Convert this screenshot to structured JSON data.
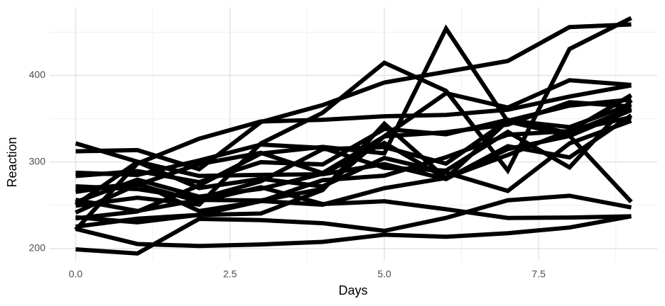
{
  "chart_data": {
    "type": "line",
    "x_label": "Days",
    "y_label": "Reaction",
    "x": [
      0,
      1,
      2,
      3,
      4,
      5,
      6,
      7,
      8,
      9
    ],
    "series": [
      {
        "color": "#000000",
        "values": [
          249.56,
          258.7,
          250.8,
          321.44,
          356.85,
          414.69,
          382.2,
          290.15,
          430.59,
          466.35
        ]
      },
      {
        "color": "#000000",
        "values": [
          222.73,
          205.27,
          202.98,
          204.71,
          207.72,
          215.96,
          213.63,
          217.73,
          224.3,
          237.31
        ]
      },
      {
        "color": "#000000",
        "values": [
          199.05,
          194.33,
          234.32,
          232.84,
          229.31,
          220.46,
          235.42,
          255.75,
          261.01,
          247.52
        ]
      },
      {
        "color": "#000000",
        "values": [
          321.54,
          300.4,
          283.86,
          285.13,
          285.8,
          297.59,
          280.24,
          318.26,
          305.35,
          354.05
        ]
      },
      {
        "color": "#000000",
        "values": [
          287.61,
          285.0,
          301.82,
          320.12,
          316.28,
          293.32,
          290.08,
          334.82,
          293.75,
          371.58
        ]
      },
      {
        "color": "#000000",
        "values": [
          234.86,
          242.81,
          272.96,
          309.77,
          317.46,
          309.99,
          454.16,
          346.83,
          330.3,
          253.86
        ]
      },
      {
        "color": "#000000",
        "values": [
          283.84,
          289.56,
          276.77,
          299.81,
          297.17,
          338.17,
          332.02,
          348.84,
          333.36,
          362.04
        ]
      },
      {
        "color": "#000000",
        "values": [
          265.47,
          276.2,
          243.36,
          254.67,
          279.02,
          284.2,
          305.52,
          331.52,
          335.75,
          377.3
        ]
      },
      {
        "color": "#000000",
        "values": [
          241.61,
          273.95,
          254.49,
          270.84,
          251.45,
          254.64,
          245.45,
          235.31,
          235.79,
          237.25
        ]
      },
      {
        "color": "#000000",
        "values": [
          312.36,
          313.82,
          291.61,
          346.12,
          365.73,
          391.84,
          404.26,
          416.69,
          455.86,
          458.92
        ]
      },
      {
        "color": "#000000",
        "values": [
          236.1,
          230.32,
          238.92,
          254.92,
          250.71,
          269.77,
          281.56,
          308.1,
          336.28,
          351.65
        ]
      },
      {
        "color": "#000000",
        "values": [
          256.29,
          243.45,
          256.2,
          255.53,
          268.92,
          329.72,
          379.44,
          362.92,
          394.49,
          389.05
        ]
      },
      {
        "color": "#000000",
        "values": [
          250.56,
          300.06,
          269.89,
          280.58,
          271.83,
          304.63,
          287.75,
          266.59,
          321.54,
          347.56
        ]
      },
      {
        "color": "#000000",
        "values": [
          221.68,
          298.19,
          326.88,
          346.86,
          348.74,
          352.83,
          354.43,
          360.43,
          375.64,
          388.54
        ]
      },
      {
        "color": "#000000",
        "values": [
          271.92,
          268.7,
          257.7,
          277.66,
          314.82,
          317.21,
          298.14,
          348.13,
          340.28,
          366.51
        ]
      },
      {
        "color": "#000000",
        "values": [
          225.26,
          234.52,
          238.9,
          240.47,
          267.54,
          344.19,
          281.15,
          347.59,
          365.16,
          372.23
        ]
      },
      {
        "color": "#000000",
        "values": [
          269.41,
          273.47,
          297.6,
          310.63,
          287.17,
          329.61,
          334.48,
          343.22,
          369.14,
          364.12
        ]
      },
      {
        "color": "#000000",
        "values": [
          253.64,
          279.63,
          260.0,
          269.03,
          286.38,
          322.0,
          281.0,
          315.0,
          330.0,
          360.0
        ]
      }
    ],
    "xlim": [
      -0.42,
      9.42
    ],
    "ylim": [
      186,
      479
    ],
    "xticks": [
      {
        "value": 0,
        "label": "0.0"
      },
      2.5,
      {
        "value": 5,
        "label": "5.0"
      },
      7.5
    ],
    "yticks": [
      200,
      300,
      400
    ],
    "x_minor_grid": [
      1.25,
      3.75,
      6.25,
      8.75
    ],
    "y_minor_grid": [
      250,
      350,
      450
    ],
    "grid": true
  }
}
